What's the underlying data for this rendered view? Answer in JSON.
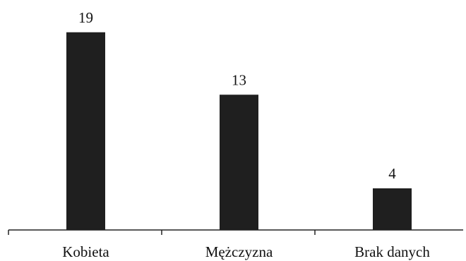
{
  "chart_data": {
    "type": "bar",
    "title": "",
    "xlabel": "",
    "ylabel": "",
    "categories": [
      "Kobieta",
      "Mężczyzna",
      "Brak danych"
    ],
    "values": [
      19,
      13,
      4
    ],
    "data_labels": [
      "19",
      "13",
      "4"
    ],
    "ylim": [
      0,
      20
    ],
    "grid": false,
    "legend": "none",
    "bar_color": "#1f1f1f"
  }
}
